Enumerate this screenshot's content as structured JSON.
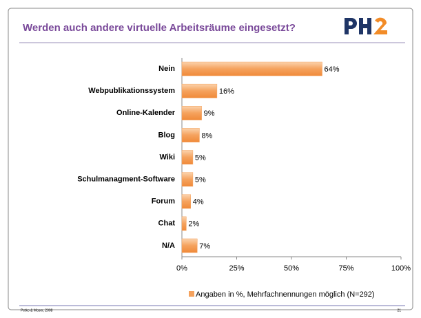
{
  "chart_data": {
    "type": "hbar",
    "title": "Werden auch andere virtuelle Arbeitsräume eingesetzt?",
    "categories": [
      "Nein",
      "Webpublikationssystem",
      "Online-Kalender",
      "Blog",
      "Wiki",
      "Schulmanagment-Software",
      "Forum",
      "Chat",
      "N/A"
    ],
    "series": [
      {
        "name": "Angaben in %, Mehrfachnennungen möglich (N=292)",
        "color": "#f5a25d",
        "values": [
          64,
          16,
          9,
          8,
          5,
          5,
          4,
          2,
          7
        ],
        "value_labels": [
          "64%",
          "16%",
          "9%",
          "8%",
          "5%",
          "5%",
          "4%",
          "2%",
          "7%"
        ]
      }
    ],
    "xlim": [
      0,
      100
    ],
    "xticks": [
      {
        "value": 0,
        "label": "0%"
      },
      {
        "value": 25,
        "label": "25%"
      },
      {
        "value": 50,
        "label": "50%"
      },
      {
        "value": 75,
        "label": "75%"
      },
      {
        "value": 100,
        "label": "100%"
      }
    ],
    "legend": "bottom-right"
  },
  "footer": {
    "left": "Petko & Moser, 2008",
    "right": "21"
  }
}
